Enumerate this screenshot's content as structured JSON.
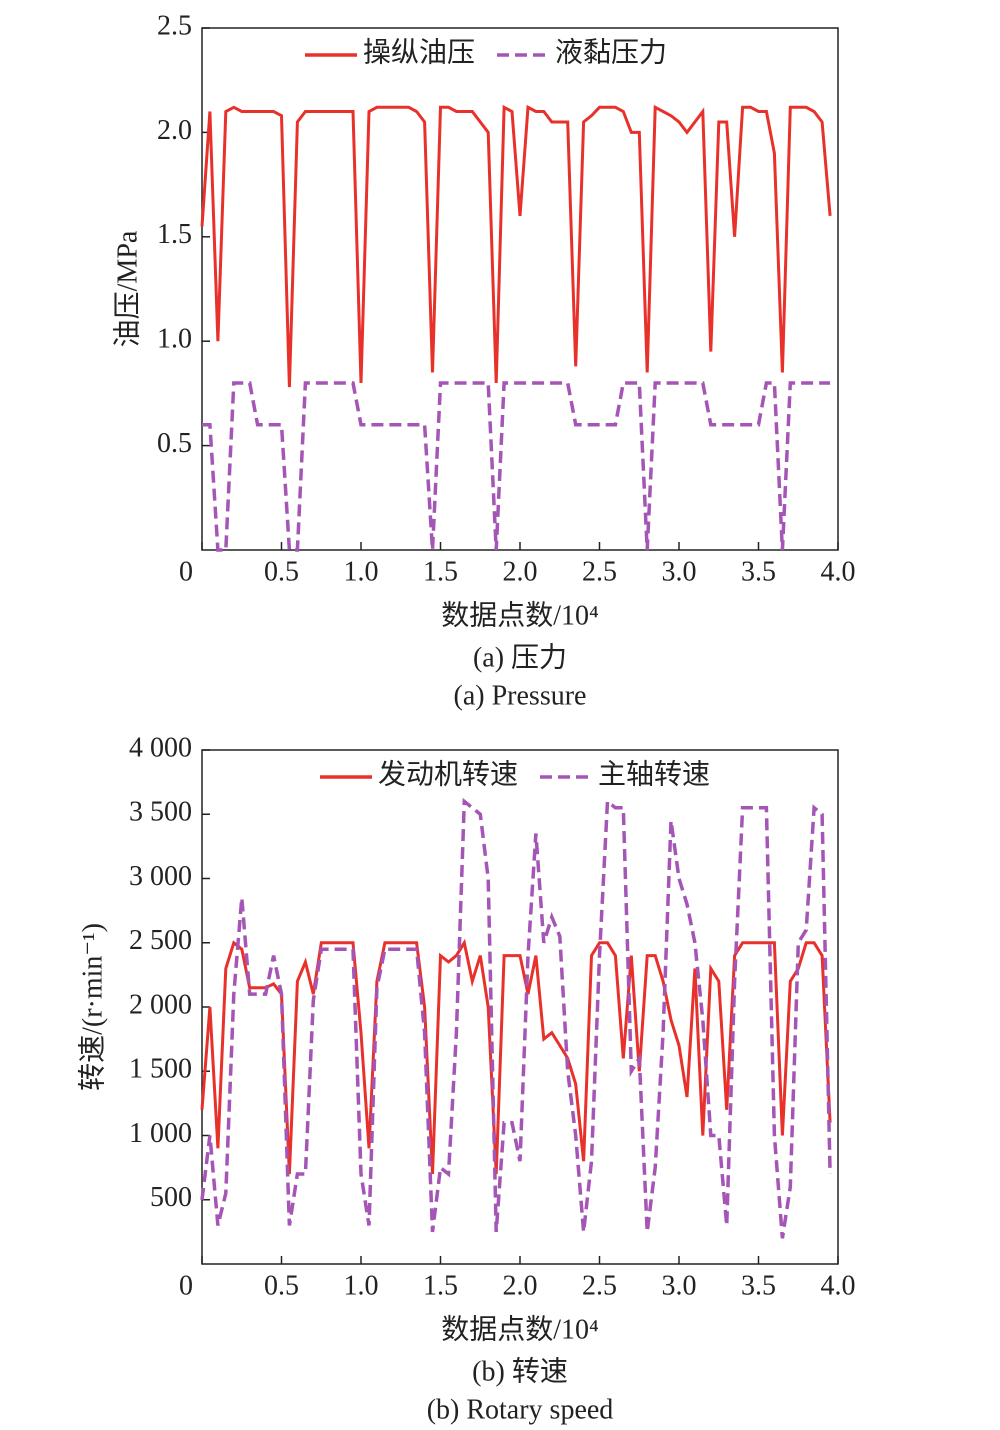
{
  "chart_data": [
    {
      "type": "line",
      "xlabel": "数据点数/10⁴",
      "ylabel": "油压/MPa",
      "caption": "(a) 压力",
      "caption_en": "(a) Pressure",
      "legend": "top",
      "xlim": [
        0,
        4.0
      ],
      "ylim": [
        0,
        2.5
      ],
      "xticks": [
        0,
        0.5,
        {
          "value": 1,
          "label": "1.0"
        },
        1.5,
        {
          "value": 2,
          "label": "2.0"
        },
        2.5,
        {
          "value": 3,
          "label": "3.0"
        },
        3.5,
        {
          "value": 4,
          "label": "4.0"
        }
      ],
      "yticks": [
        0.5,
        {
          "value": 1,
          "label": "1.0"
        },
        1.5,
        {
          "value": 2,
          "label": "2.0"
        },
        2.5
      ],
      "x": [
        0,
        0.05,
        0.1,
        0.15,
        0.2,
        0.25,
        0.3,
        0.35,
        0.4,
        0.45,
        0.5,
        0.55,
        0.6,
        0.65,
        0.7,
        0.75,
        0.8,
        0.85,
        0.9,
        0.95,
        1,
        1.05,
        1.1,
        1.15,
        1.2,
        1.25,
        1.3,
        1.35,
        1.4,
        1.45,
        1.5,
        1.55,
        1.6,
        1.65,
        1.7,
        1.75,
        1.8,
        1.85,
        1.9,
        1.95,
        2,
        2.05,
        2.1,
        2.15,
        2.2,
        2.25,
        2.3,
        2.35,
        2.4,
        2.45,
        2.5,
        2.55,
        2.6,
        2.65,
        2.7,
        2.75,
        2.8,
        2.85,
        2.9,
        2.95,
        3,
        3.05,
        3.1,
        3.15,
        3.2,
        3.25,
        3.3,
        3.35,
        3.4,
        3.45,
        3.5,
        3.55,
        3.6,
        3.65,
        3.7,
        3.75,
        3.8,
        3.85,
        3.9,
        3.95
      ],
      "series": [
        {
          "name": "操纵油压",
          "color": "#e8312a",
          "line_style": "solid",
          "values": [
            1.55,
            2.1,
            1.0,
            2.1,
            2.12,
            2.1,
            2.1,
            2.1,
            2.1,
            2.1,
            2.08,
            0.78,
            2.05,
            2.1,
            2.1,
            2.1,
            2.1,
            2.1,
            2.1,
            2.1,
            0.8,
            2.1,
            2.12,
            2.12,
            2.12,
            2.12,
            2.12,
            2.1,
            2.05,
            0.85,
            2.12,
            2.12,
            2.1,
            2.1,
            2.1,
            2.05,
            2.0,
            0.8,
            2.12,
            2.1,
            1.6,
            2.12,
            2.1,
            2.1,
            2.05,
            2.05,
            2.05,
            0.88,
            2.05,
            2.08,
            2.12,
            2.12,
            2.12,
            2.1,
            2.0,
            2.0,
            0.85,
            2.12,
            2.1,
            2.08,
            2.05,
            2.0,
            2.05,
            2.1,
            0.95,
            2.05,
            2.05,
            1.5,
            2.12,
            2.12,
            2.1,
            2.1,
            1.9,
            0.85,
            2.12,
            2.12,
            2.12,
            2.1,
            2.05,
            1.6
          ]
        },
        {
          "name": "液黏压力",
          "color": "#a455b5",
          "line_style": "dashed",
          "values": [
            0.6,
            0.6,
            0,
            0,
            0.8,
            0.8,
            0.8,
            0.6,
            0.6,
            0.6,
            0.6,
            0,
            0,
            0.8,
            0.8,
            0.8,
            0.8,
            0.8,
            0.8,
            0.8,
            0.6,
            0.6,
            0.6,
            0.6,
            0.6,
            0.6,
            0.6,
            0.6,
            0.6,
            0,
            0.8,
            0.8,
            0.8,
            0.8,
            0.8,
            0.8,
            0.8,
            0,
            0.8,
            0.8,
            0.8,
            0.8,
            0.8,
            0.8,
            0.8,
            0.8,
            0.8,
            0.6,
            0.6,
            0.6,
            0.6,
            0.6,
            0.6,
            0.8,
            0.8,
            0.8,
            0,
            0.8,
            0.8,
            0.8,
            0.8,
            0.8,
            0.8,
            0.8,
            0.6,
            0.6,
            0.6,
            0.6,
            0.6,
            0.6,
            0.6,
            0.8,
            0.8,
            0,
            0.8,
            0.8,
            0.8,
            0.8,
            0.8,
            0.8
          ]
        }
      ]
    },
    {
      "type": "line",
      "xlabel": "数据点数/10⁴",
      "ylabel": "转速/(r·min⁻¹)",
      "caption": "(b) 转速",
      "caption_en": "(b) Rotary speed",
      "legend": "top",
      "xlim": [
        0,
        4.0
      ],
      "ylim": [
        0,
        4000
      ],
      "xticks": [
        0,
        0.5,
        {
          "value": 1,
          "label": "1.0"
        },
        1.5,
        {
          "value": 2,
          "label": "2.0"
        },
        2.5,
        {
          "value": 3,
          "label": "3.0"
        },
        3.5,
        {
          "value": 4,
          "label": "4.0"
        }
      ],
      "yticks": [
        500,
        {
          "value": 1000,
          "label": "1 000"
        },
        {
          "value": 1500,
          "label": "1 500"
        },
        {
          "value": 2000,
          "label": "2 000"
        },
        {
          "value": 2500,
          "label": "2 500"
        },
        {
          "value": 3000,
          "label": "3 000"
        },
        {
          "value": 3500,
          "label": "3 500"
        },
        {
          "value": 4000,
          "label": "4 000"
        }
      ],
      "x": [
        0,
        0.05,
        0.1,
        0.15,
        0.2,
        0.25,
        0.3,
        0.35,
        0.4,
        0.45,
        0.5,
        0.55,
        0.6,
        0.65,
        0.7,
        0.75,
        0.8,
        0.85,
        0.9,
        0.95,
        1,
        1.05,
        1.1,
        1.15,
        1.2,
        1.25,
        1.3,
        1.35,
        1.4,
        1.45,
        1.5,
        1.55,
        1.6,
        1.65,
        1.7,
        1.75,
        1.8,
        1.85,
        1.9,
        1.95,
        2,
        2.05,
        2.1,
        2.15,
        2.2,
        2.25,
        2.3,
        2.35,
        2.4,
        2.45,
        2.5,
        2.55,
        2.6,
        2.65,
        2.7,
        2.75,
        2.8,
        2.85,
        2.9,
        2.95,
        3,
        3.05,
        3.1,
        3.15,
        3.2,
        3.25,
        3.3,
        3.35,
        3.4,
        3.45,
        3.5,
        3.55,
        3.6,
        3.65,
        3.7,
        3.75,
        3.8,
        3.85,
        3.9,
        3.95
      ],
      "series": [
        {
          "name": "发动机转速",
          "color": "#e8312a",
          "line_style": "solid",
          "values": [
            1200,
            2000,
            900,
            2300,
            2500,
            2450,
            2150,
            2150,
            2150,
            2180,
            2100,
            700,
            2200,
            2350,
            2100,
            2500,
            2500,
            2500,
            2500,
            2500,
            1800,
            900,
            2200,
            2500,
            2500,
            2500,
            2500,
            2500,
            2000,
            700,
            2400,
            2350,
            2400,
            2500,
            2200,
            2400,
            2000,
            700,
            2400,
            2400,
            2400,
            2100,
            2400,
            1750,
            1800,
            1700,
            1600,
            1400,
            800,
            2400,
            2500,
            2500,
            2400,
            1600,
            2400,
            1500,
            2400,
            2400,
            2200,
            1900,
            1700,
            1300,
            2300,
            1000,
            2300,
            2200,
            1200,
            2400,
            2500,
            2500,
            2500,
            2500,
            2500,
            1000,
            2200,
            2300,
            2500,
            2500,
            2400,
            1100
          ]
        },
        {
          "name": "主轴转速",
          "color": "#a455b5",
          "line_style": "dashed",
          "values": [
            500,
            1000,
            300,
            550,
            2100,
            2850,
            2100,
            2100,
            2100,
            2400,
            2100,
            300,
            700,
            700,
            2050,
            2450,
            2450,
            2450,
            2450,
            2450,
            700,
            300,
            2150,
            2450,
            2450,
            2450,
            2450,
            2450,
            1800,
            250,
            750,
            700,
            1800,
            3600,
            3550,
            3500,
            3000,
            250,
            1100,
            1100,
            800,
            2400,
            3350,
            2500,
            2700,
            2550,
            1500,
            1000,
            250,
            800,
            2400,
            3600,
            3550,
            3550,
            1500,
            1600,
            250,
            750,
            1800,
            3450,
            3000,
            2800,
            2500,
            1900,
            1000,
            1000,
            300,
            2200,
            3550,
            3550,
            3550,
            3550,
            1000,
            200,
            600,
            2500,
            2600,
            3550,
            3500,
            700
          ]
        }
      ]
    }
  ]
}
